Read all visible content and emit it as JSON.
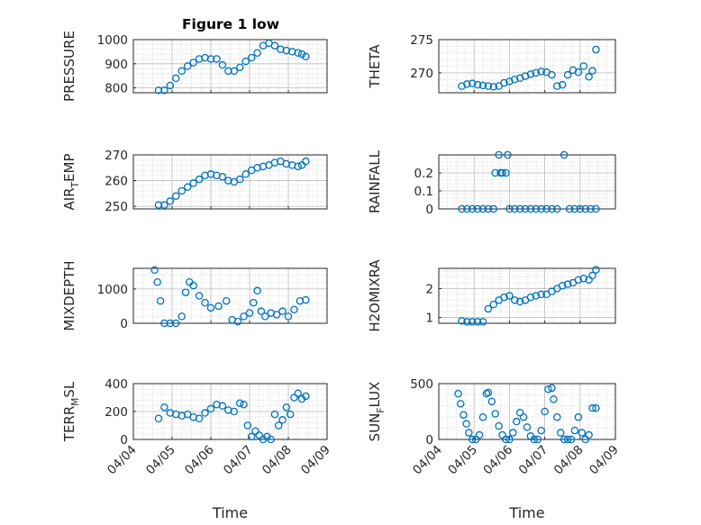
{
  "figure": {
    "title": "Figure 1 low",
    "xlabel": "Time",
    "marker_color": "#0072BD",
    "x_ticks": [
      {
        "v": 0,
        "label": "04/04"
      },
      {
        "v": 1,
        "label": "04/05"
      },
      {
        "v": 2,
        "label": "04/06"
      },
      {
        "v": 3,
        "label": "04/07"
      },
      {
        "v": 4,
        "label": "04/08"
      },
      {
        "v": 5,
        "label": "04/09"
      }
    ],
    "x_range_days": [
      0,
      5
    ]
  },
  "chart_data": [
    {
      "type": "scatter",
      "ylabel": "PRESSURE",
      "ylim": [
        780,
        1000
      ],
      "yticks": [
        800,
        900,
        1000
      ],
      "grid": true,
      "minor_grid": true,
      "x": [
        0.65,
        0.8,
        0.95,
        1.1,
        1.25,
        1.4,
        1.55,
        1.7,
        1.85,
        2.0,
        2.15,
        2.3,
        2.45,
        2.6,
        2.75,
        2.9,
        3.05,
        3.2,
        3.35,
        3.5,
        3.65,
        3.8,
        3.95,
        4.1,
        4.25,
        4.35,
        4.45
      ],
      "y": [
        790,
        790,
        810,
        840,
        870,
        890,
        905,
        920,
        925,
        920,
        920,
        895,
        870,
        870,
        885,
        910,
        925,
        945,
        975,
        985,
        975,
        960,
        955,
        950,
        945,
        940,
        930
      ]
    },
    {
      "type": "scatter",
      "ylabel": "THETA",
      "ylim": [
        267,
        275
      ],
      "yticks": [
        270,
        275
      ],
      "grid": true,
      "minor_grid": true,
      "x": [
        0.65,
        0.8,
        0.95,
        1.1,
        1.25,
        1.4,
        1.55,
        1.7,
        1.85,
        2.0,
        2.15,
        2.3,
        2.45,
        2.6,
        2.75,
        2.9,
        3.05,
        3.2,
        3.35,
        3.5,
        3.65,
        3.8,
        3.95,
        4.1,
        4.25,
        4.35,
        4.45
      ],
      "y": [
        268.0,
        268.3,
        268.4,
        268.2,
        268.1,
        268.0,
        267.9,
        268.0,
        268.5,
        268.7,
        269.0,
        269.2,
        269.5,
        269.8,
        270.0,
        270.2,
        270.1,
        269.7,
        268.0,
        268.2,
        269.7,
        270.4,
        270.1,
        271.0,
        269.4,
        270.3,
        273.5
      ]
    },
    {
      "type": "scatter",
      "ylabel": "AIR_TEMP",
      "ylim": [
        249,
        270
      ],
      "yticks": [
        250,
        260,
        270
      ],
      "grid": true,
      "minor_grid": true,
      "x": [
        0.65,
        0.8,
        0.95,
        1.1,
        1.25,
        1.4,
        1.55,
        1.7,
        1.85,
        2.0,
        2.15,
        2.3,
        2.45,
        2.6,
        2.75,
        2.9,
        3.05,
        3.2,
        3.35,
        3.5,
        3.65,
        3.8,
        3.95,
        4.1,
        4.25,
        4.35,
        4.45
      ],
      "y": [
        250.5,
        250.5,
        252.0,
        254.0,
        256.0,
        257.5,
        259.0,
        260.5,
        262.0,
        262.5,
        262.0,
        261.5,
        260.0,
        259.5,
        260.5,
        262.5,
        264.0,
        265.0,
        265.5,
        266.0,
        267.0,
        267.5,
        266.5,
        266.0,
        265.5,
        266.0,
        267.5
      ]
    },
    {
      "type": "scatter",
      "ylabel": "RAINFALL",
      "ylim": [
        0,
        0.3
      ],
      "yticks": [
        0,
        0.1,
        0.2
      ],
      "grid": true,
      "minor_grid": true,
      "x": [
        0.65,
        0.8,
        0.95,
        1.1,
        1.25,
        1.4,
        1.55,
        1.6,
        1.7,
        1.75,
        1.8,
        1.9,
        1.95,
        2.0,
        2.15,
        2.3,
        2.45,
        2.6,
        2.75,
        2.9,
        3.05,
        3.2,
        3.35,
        3.55,
        3.7,
        3.85,
        4.0,
        4.15,
        4.3,
        4.45
      ],
      "y": [
        0,
        0,
        0,
        0,
        0,
        0,
        0,
        0.2,
        0.3,
        0.2,
        0.2,
        0.2,
        0.3,
        0,
        0,
        0,
        0,
        0,
        0,
        0,
        0,
        0,
        0,
        0.3,
        0,
        0,
        0,
        0,
        0,
        0
      ]
    },
    {
      "type": "scatter",
      "ylabel": "MIXDEPTH",
      "ylim": [
        0,
        1600
      ],
      "yticks": [
        0,
        1000
      ],
      "grid": true,
      "minor_grid": true,
      "x": [
        0.55,
        0.62,
        0.7,
        0.8,
        0.95,
        1.1,
        1.25,
        1.35,
        1.45,
        1.55,
        1.7,
        1.85,
        2.0,
        2.2,
        2.4,
        2.55,
        2.7,
        2.85,
        3.0,
        3.1,
        3.2,
        3.3,
        3.4,
        3.55,
        3.7,
        3.85,
        4.0,
        4.15,
        4.3,
        4.45
      ],
      "y": [
        1550,
        1200,
        650,
        0,
        0,
        0,
        200,
        900,
        1200,
        1100,
        800,
        600,
        450,
        500,
        650,
        100,
        50,
        200,
        300,
        600,
        950,
        350,
        200,
        300,
        250,
        350,
        200,
        400,
        650,
        680
      ]
    },
    {
      "type": "scatter",
      "ylabel": "H2OMIXRA",
      "ylim": [
        0.8,
        2.7
      ],
      "yticks": [
        1,
        2
      ],
      "grid": true,
      "minor_grid": true,
      "x": [
        0.65,
        0.8,
        0.95,
        1.1,
        1.25,
        1.4,
        1.55,
        1.7,
        1.85,
        2.0,
        2.15,
        2.3,
        2.45,
        2.6,
        2.75,
        2.9,
        3.05,
        3.2,
        3.35,
        3.5,
        3.65,
        3.8,
        3.95,
        4.1,
        4.25,
        4.35,
        4.45
      ],
      "y": [
        0.88,
        0.85,
        0.85,
        0.85,
        0.85,
        1.3,
        1.45,
        1.6,
        1.7,
        1.75,
        1.6,
        1.55,
        1.6,
        1.7,
        1.75,
        1.8,
        1.8,
        1.9,
        2.0,
        2.1,
        2.15,
        2.2,
        2.3,
        2.35,
        2.3,
        2.45,
        2.65
      ]
    },
    {
      "type": "scatter",
      "ylabel": "TERR_MSL",
      "ylim": [
        0,
        400
      ],
      "yticks": [
        0,
        200,
        400
      ],
      "grid": true,
      "minor_grid": true,
      "x": [
        0.65,
        0.8,
        0.95,
        1.1,
        1.25,
        1.4,
        1.55,
        1.7,
        1.85,
        2.0,
        2.15,
        2.3,
        2.45,
        2.6,
        2.75,
        2.85,
        2.95,
        3.05,
        3.15,
        3.25,
        3.35,
        3.45,
        3.55,
        3.65,
        3.75,
        3.85,
        3.95,
        4.05,
        4.15,
        4.25,
        4.35,
        4.45
      ],
      "y": [
        150,
        230,
        190,
        180,
        170,
        180,
        160,
        150,
        190,
        220,
        250,
        240,
        210,
        200,
        260,
        250,
        100,
        20,
        60,
        30,
        0,
        20,
        0,
        180,
        100,
        140,
        230,
        180,
        300,
        330,
        290,
        310
      ]
    },
    {
      "type": "scatter",
      "ylabel": "SUN_FLUX",
      "ylim": [
        0,
        500
      ],
      "yticks": [
        0,
        500
      ],
      "grid": true,
      "minor_grid": true,
      "x": [
        0.55,
        0.62,
        0.7,
        0.78,
        0.85,
        0.95,
        1.05,
        1.15,
        1.25,
        1.35,
        1.4,
        1.5,
        1.6,
        1.7,
        1.8,
        1.9,
        2.0,
        2.1,
        2.2,
        2.3,
        2.4,
        2.5,
        2.6,
        2.7,
        2.8,
        2.9,
        3.0,
        3.1,
        3.2,
        3.25,
        3.35,
        3.45,
        3.55,
        3.65,
        3.75,
        3.85,
        3.95,
        4.05,
        4.15,
        4.25,
        4.35,
        4.45
      ],
      "y": [
        410,
        320,
        220,
        140,
        60,
        0,
        0,
        40,
        200,
        410,
        420,
        340,
        230,
        120,
        40,
        0,
        0,
        60,
        160,
        240,
        200,
        110,
        30,
        0,
        0,
        80,
        250,
        450,
        460,
        360,
        200,
        60,
        0,
        0,
        0,
        80,
        200,
        60,
        0,
        40,
        280,
        280
      ]
    }
  ]
}
